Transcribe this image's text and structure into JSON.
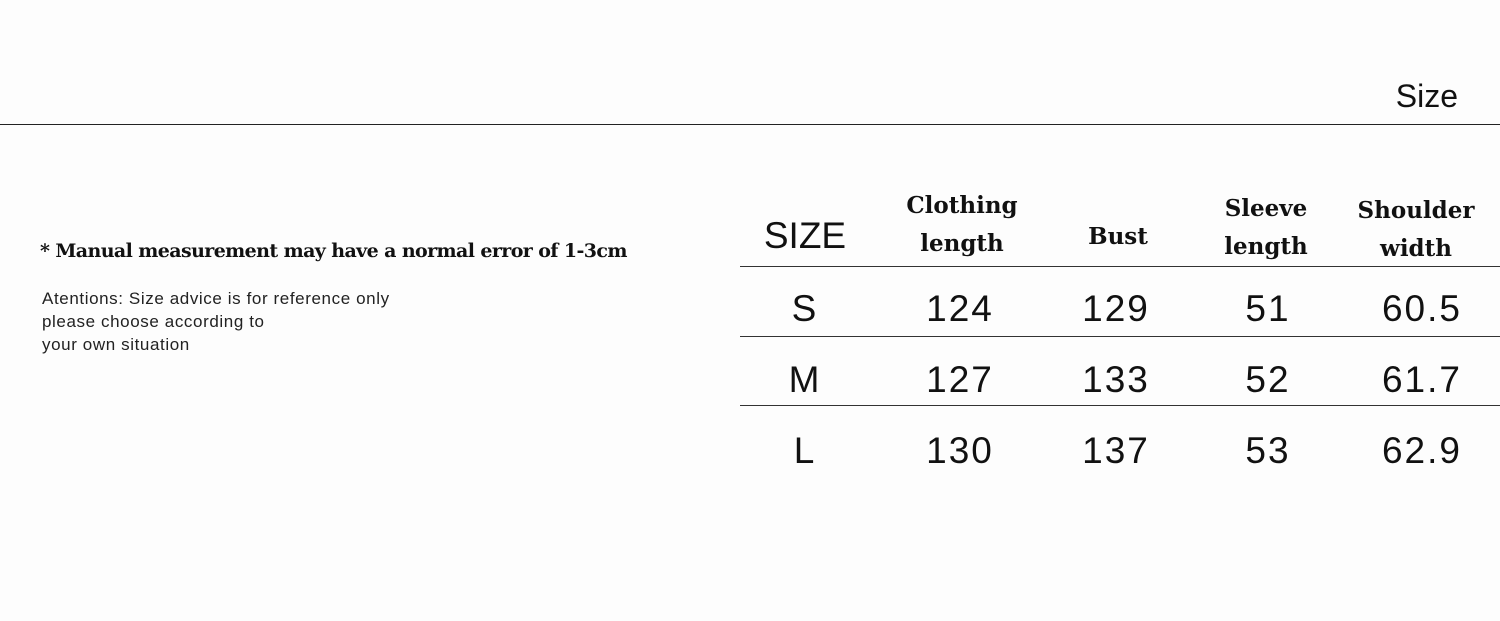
{
  "header": {
    "title": "Size"
  },
  "notes": {
    "error_note": "* Manual measurement may have a normal error of 1-3cm",
    "advice_lines": [
      "Atentions: Size advice is for reference only",
      "please choose according to",
      "your own situation"
    ]
  },
  "table": {
    "columns": [
      {
        "line1": "SIZE",
        "line2": ""
      },
      {
        "line1": "Clothing",
        "line2": "length"
      },
      {
        "line1": "Bust",
        "line2": ""
      },
      {
        "line1": "Sleeve",
        "line2": "length"
      },
      {
        "line1": "Shoulder",
        "line2": "width"
      }
    ],
    "rows": [
      [
        "S",
        "124",
        "129",
        "51",
        "60.5"
      ],
      [
        "M",
        "127",
        "133",
        "52",
        "61.7"
      ],
      [
        "L",
        "130",
        "137",
        "53",
        "62.9"
      ]
    ]
  }
}
